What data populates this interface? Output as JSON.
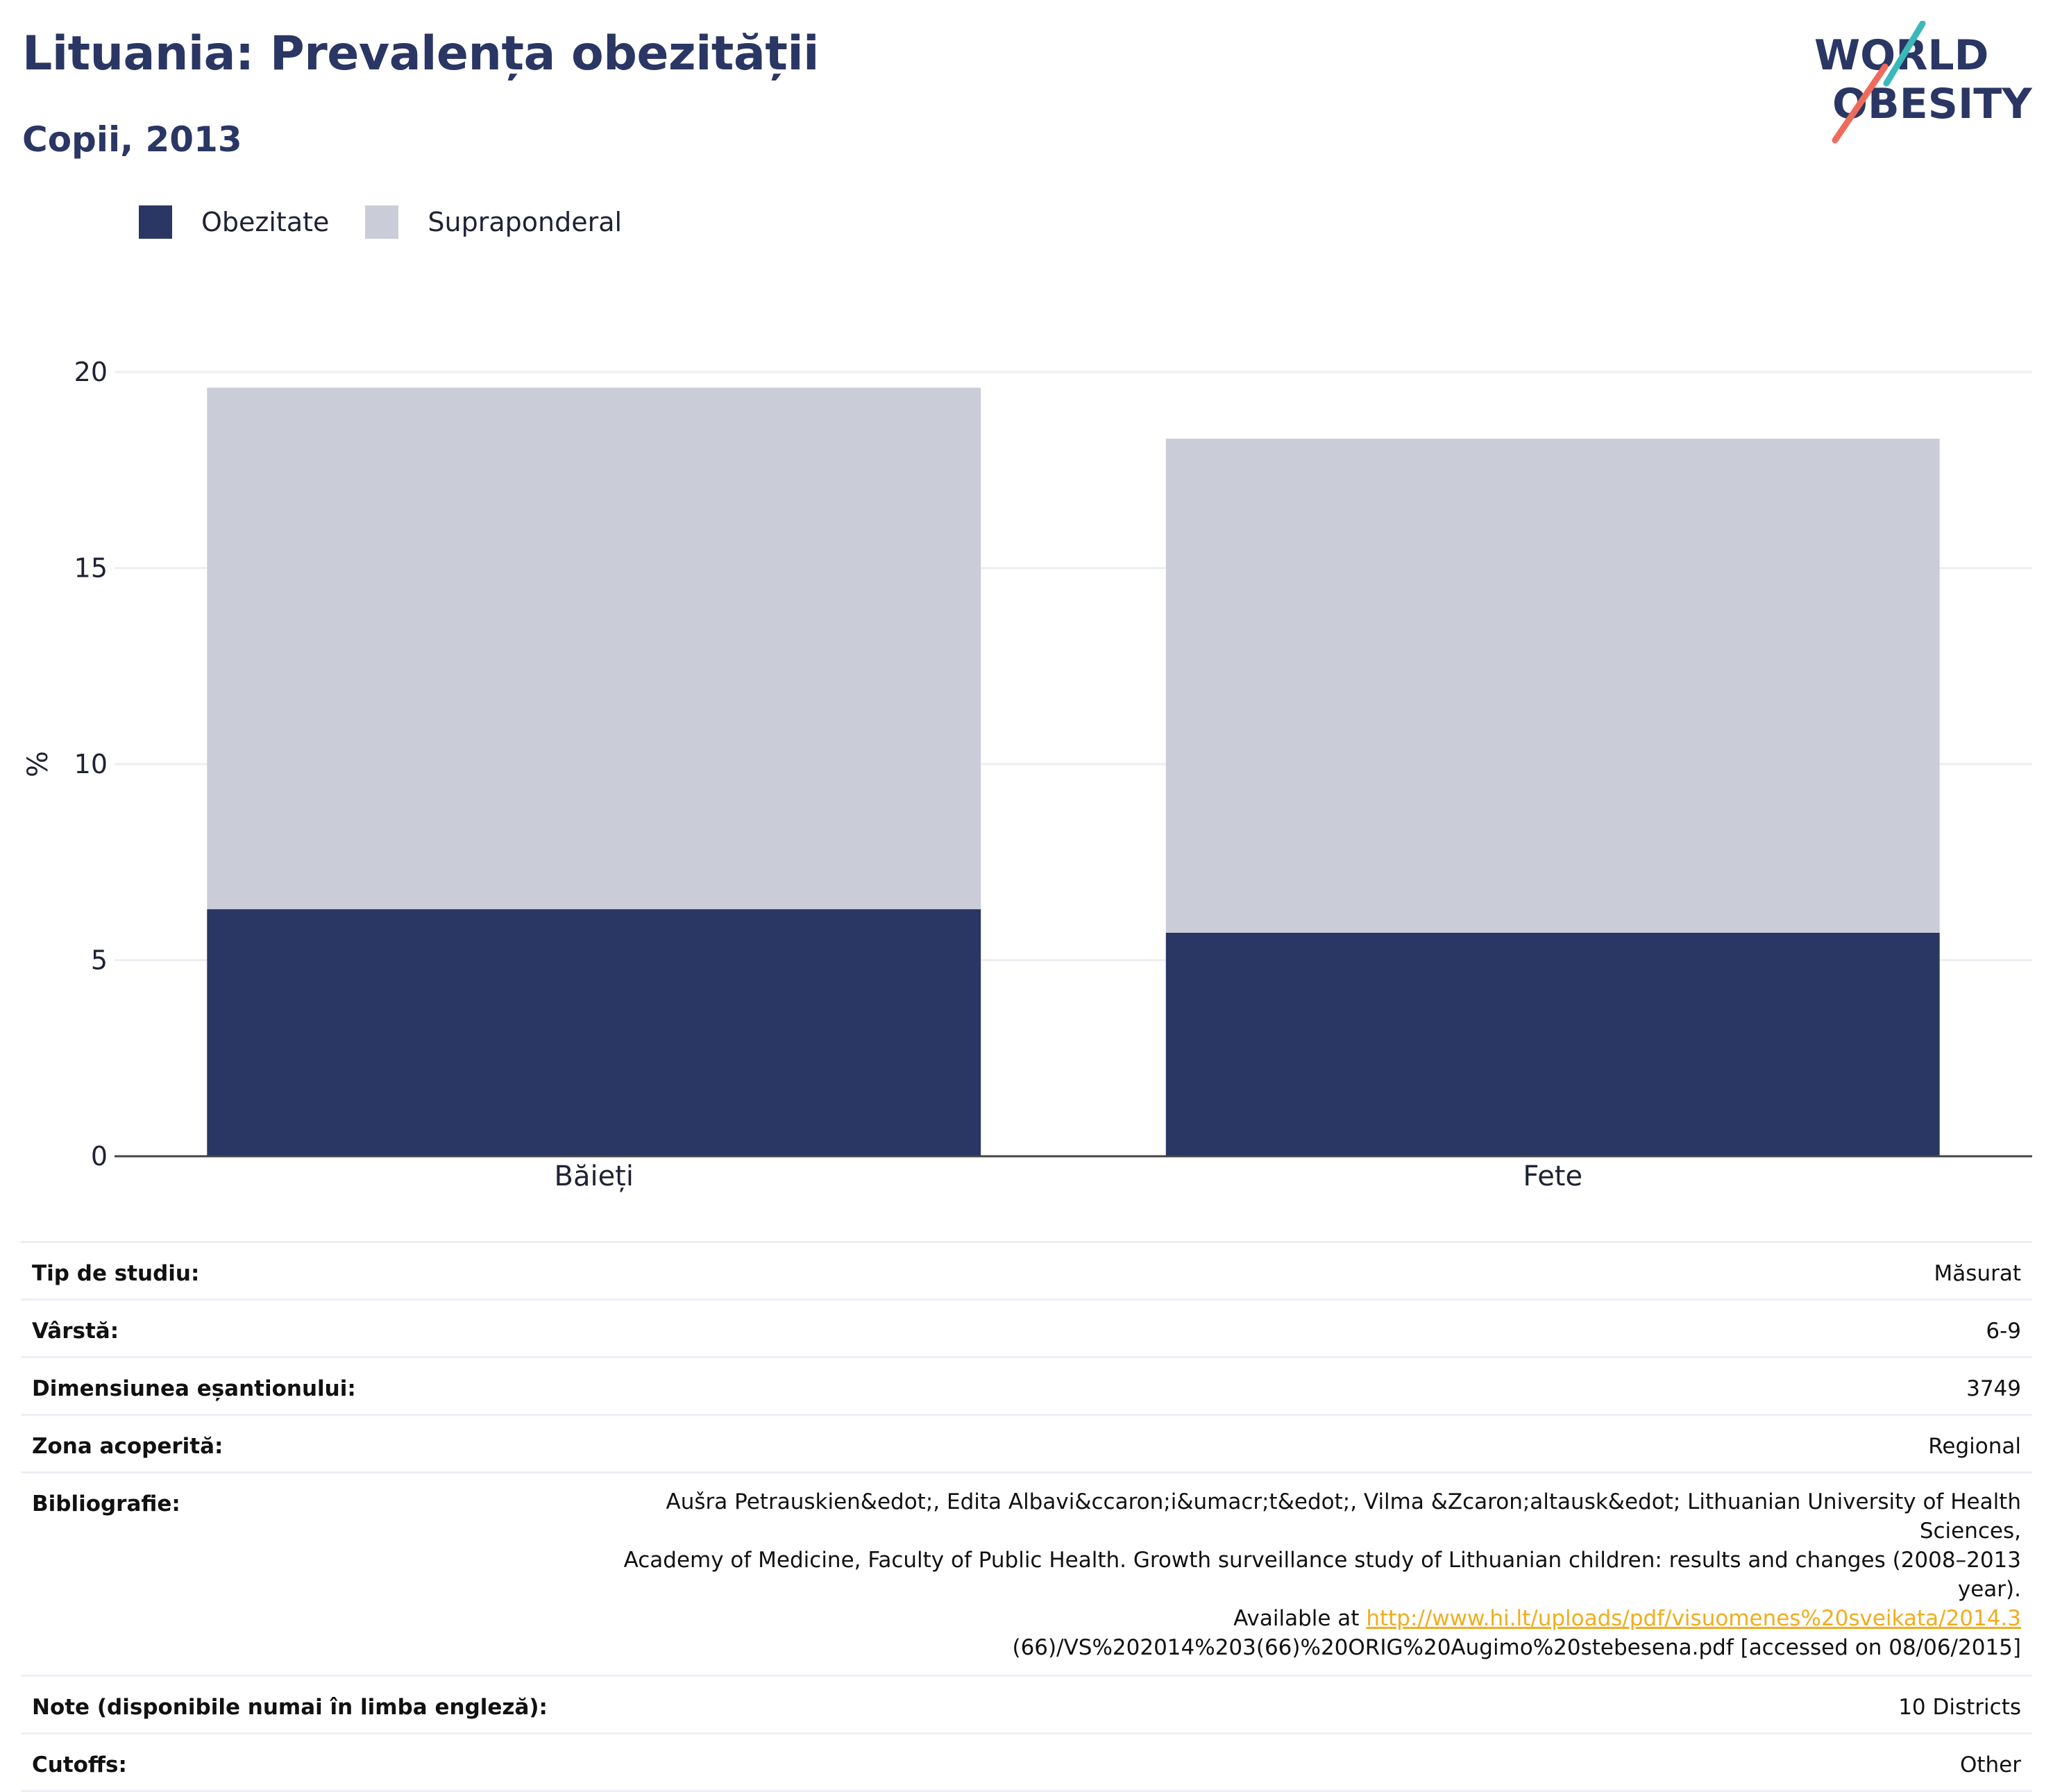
{
  "header": {
    "title": "Lituania: Prevalența obezității",
    "subtitle": "Copii, 2013",
    "logo_line1": "WORLD",
    "logo_line2": "OBESITY"
  },
  "legend": {
    "items": [
      {
        "label": "Obezitate",
        "color": "#2a3663"
      },
      {
        "label": "Supraponderal",
        "color": "#cacdd8"
      }
    ]
  },
  "chart_data": {
    "type": "bar",
    "stacked": true,
    "categories": [
      "Băieți",
      "Fete"
    ],
    "series": [
      {
        "name": "Obezitate",
        "values": [
          6.3,
          5.7
        ],
        "color": "#2a3663"
      },
      {
        "name": "Supraponderal",
        "values": [
          13.3,
          12.6
        ],
        "color": "#cacdd8"
      }
    ],
    "ylabel": "%",
    "ylim": [
      0,
      20
    ],
    "yticks": [
      0,
      5,
      10,
      15,
      20
    ],
    "grid": true,
    "legend_position": "top-left"
  },
  "info": {
    "rows": [
      {
        "label": "Tip de studiu:",
        "value": "Măsurat"
      },
      {
        "label": "Vârstă:",
        "value": "6-9"
      },
      {
        "label": "Dimensiunea eșantionului:",
        "value": "3749"
      },
      {
        "label": "Zona acoperită:",
        "value": "Regional"
      }
    ],
    "bibliography": {
      "label": "Bibliografie:",
      "line1": "Aušra Petrauskien&edot;, Edita Albavi&ccaron;i&umacr;t&edot;, Vilma &Zcaron;altausk&edot; Lithuanian University of Health Sciences,",
      "line2": "Academy of Medicine, Faculty of Public Health. Growth surveillance study of Lithuanian children: results and changes (2008–2013 year).",
      "line3_prefix": "Available at ",
      "link": "http://www.hi.lt/uploads/pdf/visuomenes%20sveikata/2014.3",
      "line4": "(66)/VS%202014%203(66)%20ORIG%20Augimo%20stebesena.pdf [accessed on 08/06/2015]"
    },
    "notes": {
      "label": "Note (disponibile numai în limba engleză):",
      "value": "10 Districts"
    },
    "cutoffs": {
      "label": "Cutoffs:",
      "value": "Other"
    }
  }
}
